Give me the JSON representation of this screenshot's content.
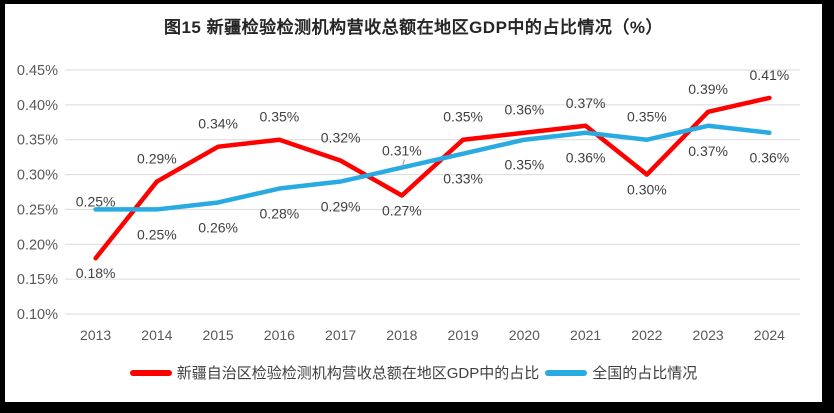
{
  "chart_data": {
    "type": "line",
    "title": "图15 新疆检验检测机构营收总额在地区GDP中的占比情况（%）",
    "categories": [
      "2013",
      "2014",
      "2015",
      "2016",
      "2017",
      "2018",
      "2019",
      "2020",
      "2021",
      "2022",
      "2023",
      "2024"
    ],
    "xlabel": "",
    "ylabel": "",
    "unit": "%",
    "y_axis": {
      "min": 0.1,
      "max": 0.45,
      "step": 0.05,
      "tick_labels": [
        "0.45%",
        "0.40%",
        "0.35%",
        "0.30%",
        "0.25%",
        "0.20%",
        "0.15%",
        "0.10%"
      ],
      "grid": true
    },
    "legend_position": "bottom",
    "series": [
      {
        "name": "新疆自治区检验检测机构营收总额在地区GDP中的占比",
        "color": "#FF0000",
        "values": [
          0.18,
          0.29,
          0.34,
          0.35,
          0.32,
          0.27,
          0.35,
          0.36,
          0.37,
          0.3,
          0.39,
          0.41
        ],
        "labels": [
          "0.18%",
          "0.29%",
          "0.34%",
          "0.35%",
          "0.32%",
          "0.27%",
          "0.35%",
          "0.36%",
          "0.37%",
          "0.30%",
          "0.39%",
          "0.41%"
        ],
        "label_positions": [
          "below",
          "above",
          "above",
          "above",
          "above",
          "below",
          "above",
          "above",
          "above",
          "below",
          "above",
          "above"
        ]
      },
      {
        "name": "全国的占比情况",
        "color": "#29ABE2",
        "values": [
          0.25,
          0.25,
          0.26,
          0.28,
          0.29,
          0.31,
          0.33,
          0.35,
          0.36,
          0.35,
          0.37,
          0.36
        ],
        "labels": [
          "0.25%",
          "0.25%",
          "0.26%",
          "0.28%",
          "0.29%",
          "0.31%",
          "0.33%",
          "0.35%",
          "0.36%",
          "0.35%",
          "0.37%",
          "0.36%"
        ],
        "label_positions": [
          "above_close",
          "below_far",
          "below_far",
          "below_far",
          "below_far",
          "above_leader",
          "below_far",
          "below_far",
          "below_far",
          "above",
          "below_far",
          "below_far"
        ]
      }
    ]
  },
  "colors": {
    "background": "#FFFFFF",
    "frame": "#000000",
    "gridline": "#D9D9D9",
    "axis_text": "#595959",
    "data_label_text": "#404040",
    "leader_line": "#A6A6A6"
  }
}
